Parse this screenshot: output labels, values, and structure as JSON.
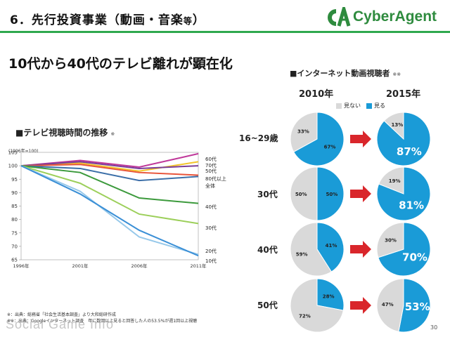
{
  "header": {
    "title_main": "6．先行投資事業（動画・音楽",
    "title_small": "等",
    "title_end": "）",
    "logo_text": "CyberAgent"
  },
  "headline": "10代から40代のテレビ離れが顕在化",
  "colors": {
    "green": "#2fa84f",
    "blue": "#1a9bd7",
    "grey": "#d9d9d9",
    "arrow": "#d9262b"
  },
  "footer": {
    "line1": "※：出典：総務省「社会生活基本調査」より大和総研作成",
    "line2": "※※：出典：Googleインターネット調査　年に数回以上見ると回答した人の53.5%が週1回以上視聴",
    "page": "30"
  },
  "watermark": "Social Game Info",
  "chart_data": [
    {
      "type": "line",
      "title": "■テレビ視聴時間の推移",
      "title_note": "※",
      "ytitle": "(1996年=100)",
      "x": [
        "1996年",
        "2001年",
        "2006年",
        "2011年"
      ],
      "ylim": [
        65,
        105
      ],
      "yticks": [
        65,
        70,
        75,
        80,
        85,
        90,
        95,
        100,
        105
      ],
      "series": [
        {
          "name": "60代",
          "color": "#c0399a",
          "values": [
            100,
            102,
            99.5,
            104.5
          ]
        },
        {
          "name": "70代",
          "color": "#f2c42c",
          "values": [
            100,
            101,
            98,
            101.5
          ]
        },
        {
          "name": "50代",
          "color": "#7a3e98",
          "values": [
            100,
            101.5,
            99,
            100
          ]
        },
        {
          "name": "80代以上",
          "color": "#e8543a",
          "values": [
            100,
            100.5,
            97.5,
            96.5
          ]
        },
        {
          "name": "全体",
          "color": "#3c6fa8",
          "values": [
            100,
            99,
            94.5,
            96
          ]
        },
        {
          "name": "40代",
          "color": "#3c9a3c",
          "values": [
            100,
            97.5,
            88,
            86
          ]
        },
        {
          "name": "30代",
          "color": "#9ccf5a",
          "values": [
            100,
            93.5,
            82,
            78.5
          ]
        },
        {
          "name": "20代",
          "color": "#96c8ea",
          "values": [
            100,
            90.5,
            73.5,
            67
          ]
        },
        {
          "name": "10代",
          "color": "#3a8fd6",
          "values": [
            100,
            89.5,
            76,
            66.5
          ]
        }
      ]
    },
    {
      "type": "pie",
      "title": "■インターネット動画視聴者",
      "title_note": "※※",
      "columns": [
        "2010年",
        "2015年"
      ],
      "categories": [
        "見ない",
        "見る"
      ],
      "rows": [
        {
          "label": "16~29歳",
          "y2010": [
            33,
            67
          ],
          "y2015": [
            13,
            87
          ]
        },
        {
          "label": "30代",
          "y2010": [
            50,
            50
          ],
          "y2015": [
            19,
            81
          ]
        },
        {
          "label": "40代",
          "y2010": [
            59,
            41
          ],
          "y2015": [
            30,
            70
          ]
        },
        {
          "label": "50代",
          "y2010": [
            72,
            28
          ],
          "y2015": [
            47,
            53
          ]
        }
      ],
      "value_suffix": "%"
    }
  ]
}
